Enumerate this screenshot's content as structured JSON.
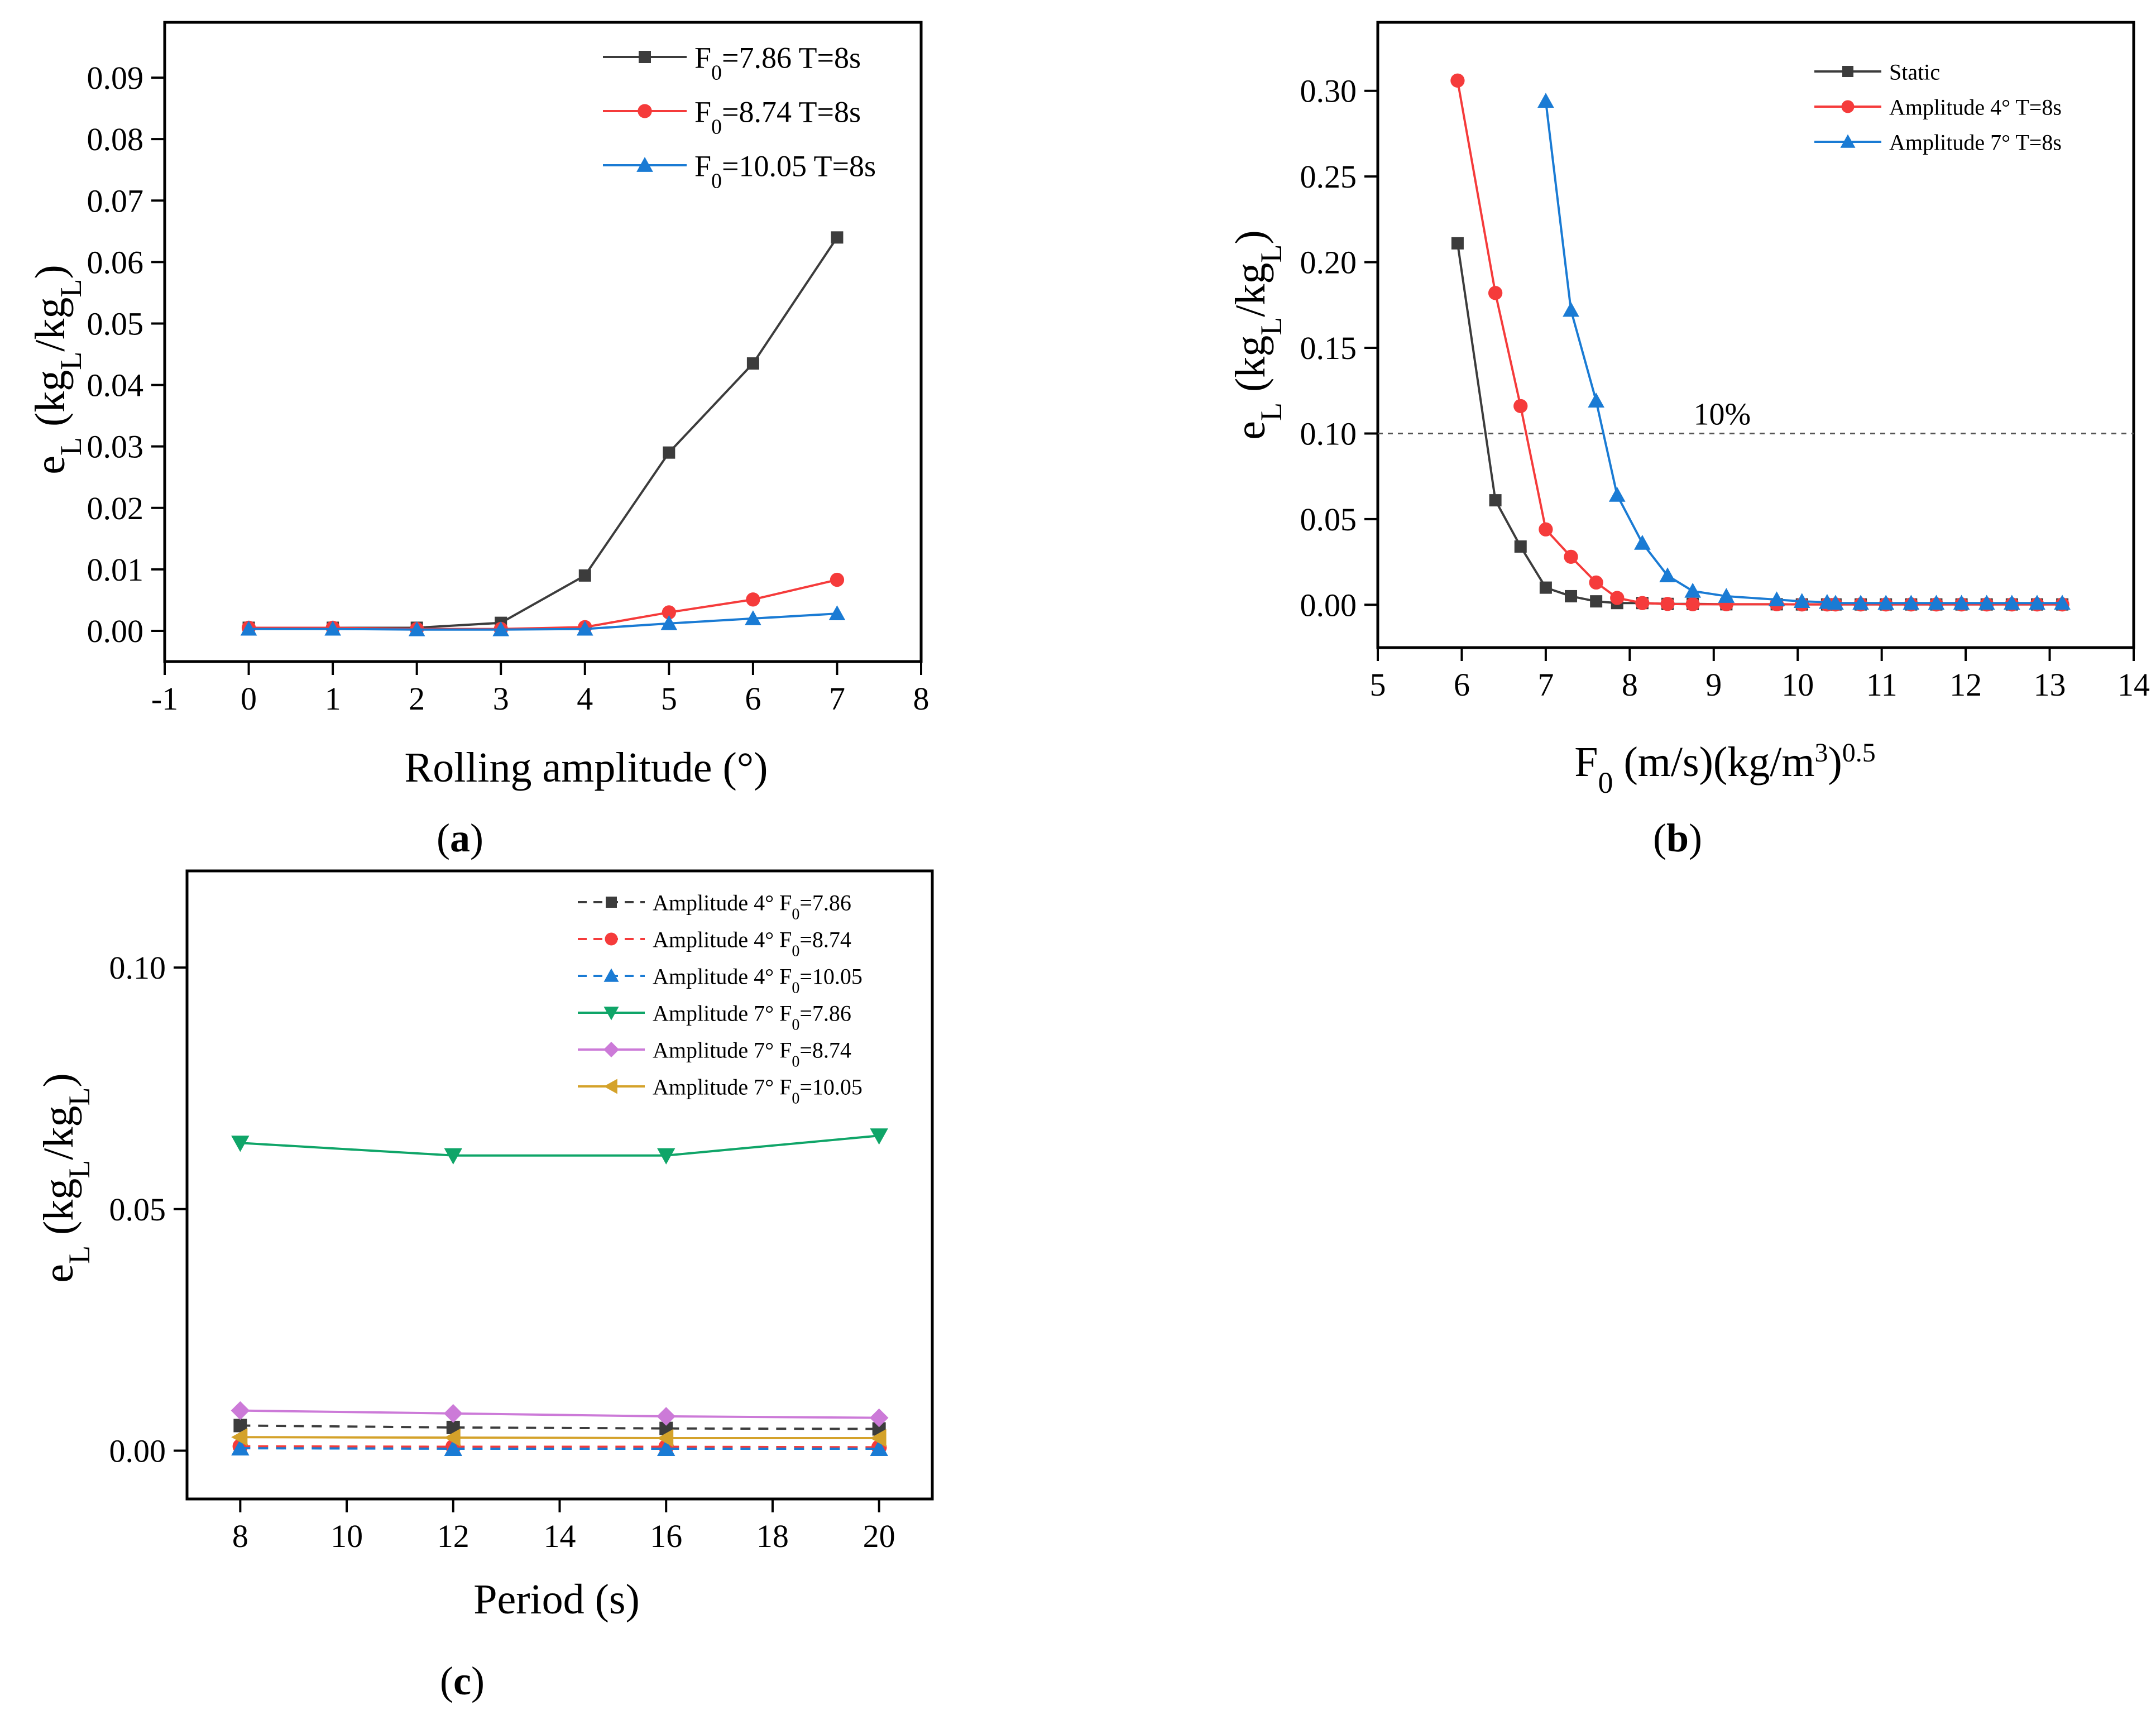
{
  "colors": {
    "black": "#3c3c3c",
    "red": "#f53b3b",
    "blue": "#1a7bd4",
    "green": "#0fa568",
    "purple": "#cc7ad8",
    "orange": "#d4a22a"
  },
  "chart_data": [
    {
      "id": "a",
      "panel_label": "a",
      "type": "line",
      "xlabel": "Rolling amplitude (°)",
      "ylabel_main": "e",
      "ylabel_sub1": "L",
      "ylabel_mid": " (kg",
      "ylabel_sub2": "L",
      "ylabel_slash": "/kg",
      "ylabel_sub3": "L",
      "ylabel_end": ")",
      "xlim": [
        -1,
        8
      ],
      "ylim": [
        -0.005,
        0.099
      ],
      "xticks": [
        -1,
        0,
        1,
        2,
        3,
        4,
        5,
        6,
        7,
        8
      ],
      "xtick_labels": [
        "-1",
        "0",
        "1",
        "2",
        "3",
        "4",
        "5",
        "6",
        "7",
        "8"
      ],
      "yticks": [
        0,
        0.01,
        0.02,
        0.03,
        0.04,
        0.05,
        0.06,
        0.07,
        0.08,
        0.09
      ],
      "ytick_labels": [
        "0.00",
        "0.01",
        "0.02",
        "0.03",
        "0.04",
        "0.05",
        "0.06",
        "0.07",
        "0.08",
        "0.09"
      ],
      "legend_position": "top-right",
      "series": [
        {
          "name_pre": "F",
          "name_sub": "0",
          "name_post": "=7.86 T=8s",
          "color": "#3c3c3c",
          "marker": "square",
          "dash": false,
          "x": [
            0,
            1,
            2,
            3,
            4,
            5,
            6,
            7
          ],
          "y": [
            0.0005,
            0.0005,
            0.0005,
            0.0013,
            0.009,
            0.029,
            0.0435,
            0.064
          ]
        },
        {
          "name_pre": "F",
          "name_sub": "0",
          "name_post": "=8.74 T=8s",
          "color": "#f53b3b",
          "marker": "circle",
          "dash": false,
          "x": [
            0,
            1,
            2,
            3,
            4,
            5,
            6,
            7
          ],
          "y": [
            0.0005,
            0.0005,
            0.0003,
            0.0003,
            0.0006,
            0.003,
            0.0051,
            0.0083
          ]
        },
        {
          "name_pre": "F",
          "name_sub": "0",
          "name_post": "=10.05 T=8s",
          "color": "#1a7bd4",
          "marker": "triangle-up",
          "dash": false,
          "x": [
            0,
            1,
            2,
            3,
            4,
            5,
            6,
            7
          ],
          "y": [
            0.0003,
            0.0003,
            0.0002,
            0.0002,
            0.0003,
            0.0012,
            0.002,
            0.0028
          ]
        }
      ]
    },
    {
      "id": "b",
      "panel_label": "b",
      "type": "line",
      "xlabel_main": "F",
      "xlabel_sub": "0",
      "xlabel_mid": " (m/s)(kg/m",
      "xlabel_sup": "3",
      "xlabel_close": ")",
      "xlabel_exp": "0.5",
      "ylabel_main": "e",
      "ylabel_sub1": "L",
      "ylabel_mid": " (kg",
      "ylabel_sub2": "L",
      "ylabel_slash": "/kg",
      "ylabel_sub3": "L",
      "ylabel_end": ")",
      "xlim": [
        5,
        14
      ],
      "ylim": [
        -0.025,
        0.34
      ],
      "xticks": [
        5,
        6,
        7,
        8,
        9,
        10,
        11,
        12,
        13,
        14
      ],
      "xtick_labels": [
        "5",
        "6",
        "7",
        "8",
        "9",
        "10",
        "11",
        "12",
        "13",
        "14"
      ],
      "yticks": [
        0,
        0.05,
        0.1,
        0.15,
        0.2,
        0.25,
        0.3
      ],
      "ytick_labels": [
        "0.00",
        "0.05",
        "0.10",
        "0.15",
        "0.20",
        "0.25",
        "0.30"
      ],
      "reference_line": {
        "y": 0.1,
        "label": "10%"
      },
      "legend_position": "top-right",
      "series": [
        {
          "name": "Static",
          "color": "#3c3c3c",
          "marker": "square",
          "dash": false,
          "x": [
            5.95,
            6.4,
            6.7,
            7.0,
            7.3,
            7.6,
            7.85,
            8.15,
            8.45,
            8.75,
            9.15,
            9.75,
            10.05,
            10.35,
            10.45,
            10.75,
            11.05,
            11.35,
            11.65,
            11.95,
            12.25,
            12.55,
            12.85,
            13.15
          ],
          "y": [
            0.211,
            0.061,
            0.034,
            0.01,
            0.005,
            0.002,
            0.001,
            0.001,
            0.0005,
            0.0005,
            0.0003,
            0.0003,
            0.0002,
            0.0002,
            0.0002,
            0.0002,
            0.0002,
            0.0002,
            0.0002,
            0.0002,
            0.0002,
            0.0002,
            0.0002,
            0.0002
          ]
        },
        {
          "name": "Amplitude 4° T=8s",
          "color": "#f53b3b",
          "marker": "circle",
          "dash": false,
          "x": [
            5.95,
            6.4,
            6.7,
            7.0,
            7.3,
            7.6,
            7.85,
            8.15,
            8.45,
            8.75,
            9.15,
            9.75,
            10.05,
            10.35,
            10.45,
            10.75,
            11.05,
            11.35,
            11.65,
            11.95,
            12.25,
            12.55,
            12.85,
            13.15
          ],
          "y": [
            0.306,
            0.182,
            0.116,
            0.044,
            0.028,
            0.013,
            0.004,
            0.001,
            0.0005,
            0.0003,
            0.0003,
            0.0003,
            0.0002,
            0.0002,
            0.0002,
            0.0002,
            0.0002,
            0.0002,
            0.0002,
            0.0002,
            0.0002,
            0.0002,
            0.0002,
            0.0002
          ]
        },
        {
          "name": "Amplitude 7° T=8s",
          "color": "#1a7bd4",
          "marker": "triangle-up",
          "dash": false,
          "x": [
            7.0,
            7.3,
            7.6,
            7.85,
            8.15,
            8.45,
            8.75,
            9.15,
            9.75,
            10.05,
            10.35,
            10.45,
            10.75,
            11.05,
            11.35,
            11.65,
            11.95,
            12.25,
            12.55,
            12.85,
            13.15
          ],
          "y": [
            0.294,
            0.172,
            0.119,
            0.064,
            0.036,
            0.017,
            0.008,
            0.005,
            0.003,
            0.002,
            0.0015,
            0.001,
            0.001,
            0.001,
            0.001,
            0.001,
            0.001,
            0.001,
            0.001,
            0.001,
            0.001
          ]
        }
      ]
    },
    {
      "id": "c",
      "panel_label": "c",
      "type": "line",
      "xlabel": "Period (s)",
      "ylabel_main": "e",
      "ylabel_sub1": "L",
      "ylabel_mid": " (kg",
      "ylabel_sub2": "L",
      "ylabel_slash": "/kg",
      "ylabel_sub3": "L",
      "ylabel_end": ")",
      "xlim": [
        7,
        21
      ],
      "ylim": [
        -0.01,
        0.12
      ],
      "xticks": [
        8,
        10,
        12,
        14,
        16,
        18,
        20
      ],
      "xtick_labels": [
        "8",
        "10",
        "12",
        "14",
        "16",
        "18",
        "20"
      ],
      "yticks": [
        0,
        0.05,
        0.1
      ],
      "ytick_labels": [
        "0.00",
        "0.05",
        "0.10"
      ],
      "legend_position": "top-right",
      "series": [
        {
          "name_pre": "Amplitude 4°  F",
          "name_sub": "0",
          "name_post": "=7.86",
          "color": "#3c3c3c",
          "marker": "square",
          "dash": true,
          "x": [
            8,
            12,
            16,
            20
          ],
          "y": [
            0.0052,
            0.0048,
            0.0046,
            0.0045
          ]
        },
        {
          "name_pre": "Amplitude 4°  F",
          "name_sub": "0",
          "name_post": "=8.74",
          "color": "#f53b3b",
          "marker": "circle",
          "dash": true,
          "x": [
            8,
            12,
            16,
            20
          ],
          "y": [
            0.0009,
            0.0008,
            0.0008,
            0.0007
          ]
        },
        {
          "name_pre": "Amplitude 4°  F",
          "name_sub": "0",
          "name_post": "=10.05",
          "color": "#1a7bd4",
          "marker": "triangle-up",
          "dash": true,
          "x": [
            8,
            12,
            16,
            20
          ],
          "y": [
            0.0005,
            0.0004,
            0.0004,
            0.0004
          ]
        },
        {
          "name_pre": "Amplitude 7°  F",
          "name_sub": "0",
          "name_post": "=7.86",
          "color": "#0fa568",
          "marker": "triangle-down",
          "dash": false,
          "x": [
            8,
            12,
            16,
            20
          ],
          "y": [
            0.0637,
            0.0611,
            0.0611,
            0.0652
          ]
        },
        {
          "name_pre": "Amplitude 7°  F",
          "name_sub": "0",
          "name_post": "=8.74",
          "color": "#cc7ad8",
          "marker": "diamond",
          "dash": false,
          "x": [
            8,
            12,
            16,
            20
          ],
          "y": [
            0.0083,
            0.0077,
            0.0071,
            0.0068
          ]
        },
        {
          "name_pre": "Amplitude 7°  F",
          "name_sub": "0",
          "name_post": "=10.05",
          "color": "#d4a22a",
          "marker": "triangle-left",
          "dash": false,
          "x": [
            8,
            12,
            16,
            20
          ],
          "y": [
            0.0028,
            0.0027,
            0.0026,
            0.0026
          ]
        }
      ]
    }
  ]
}
